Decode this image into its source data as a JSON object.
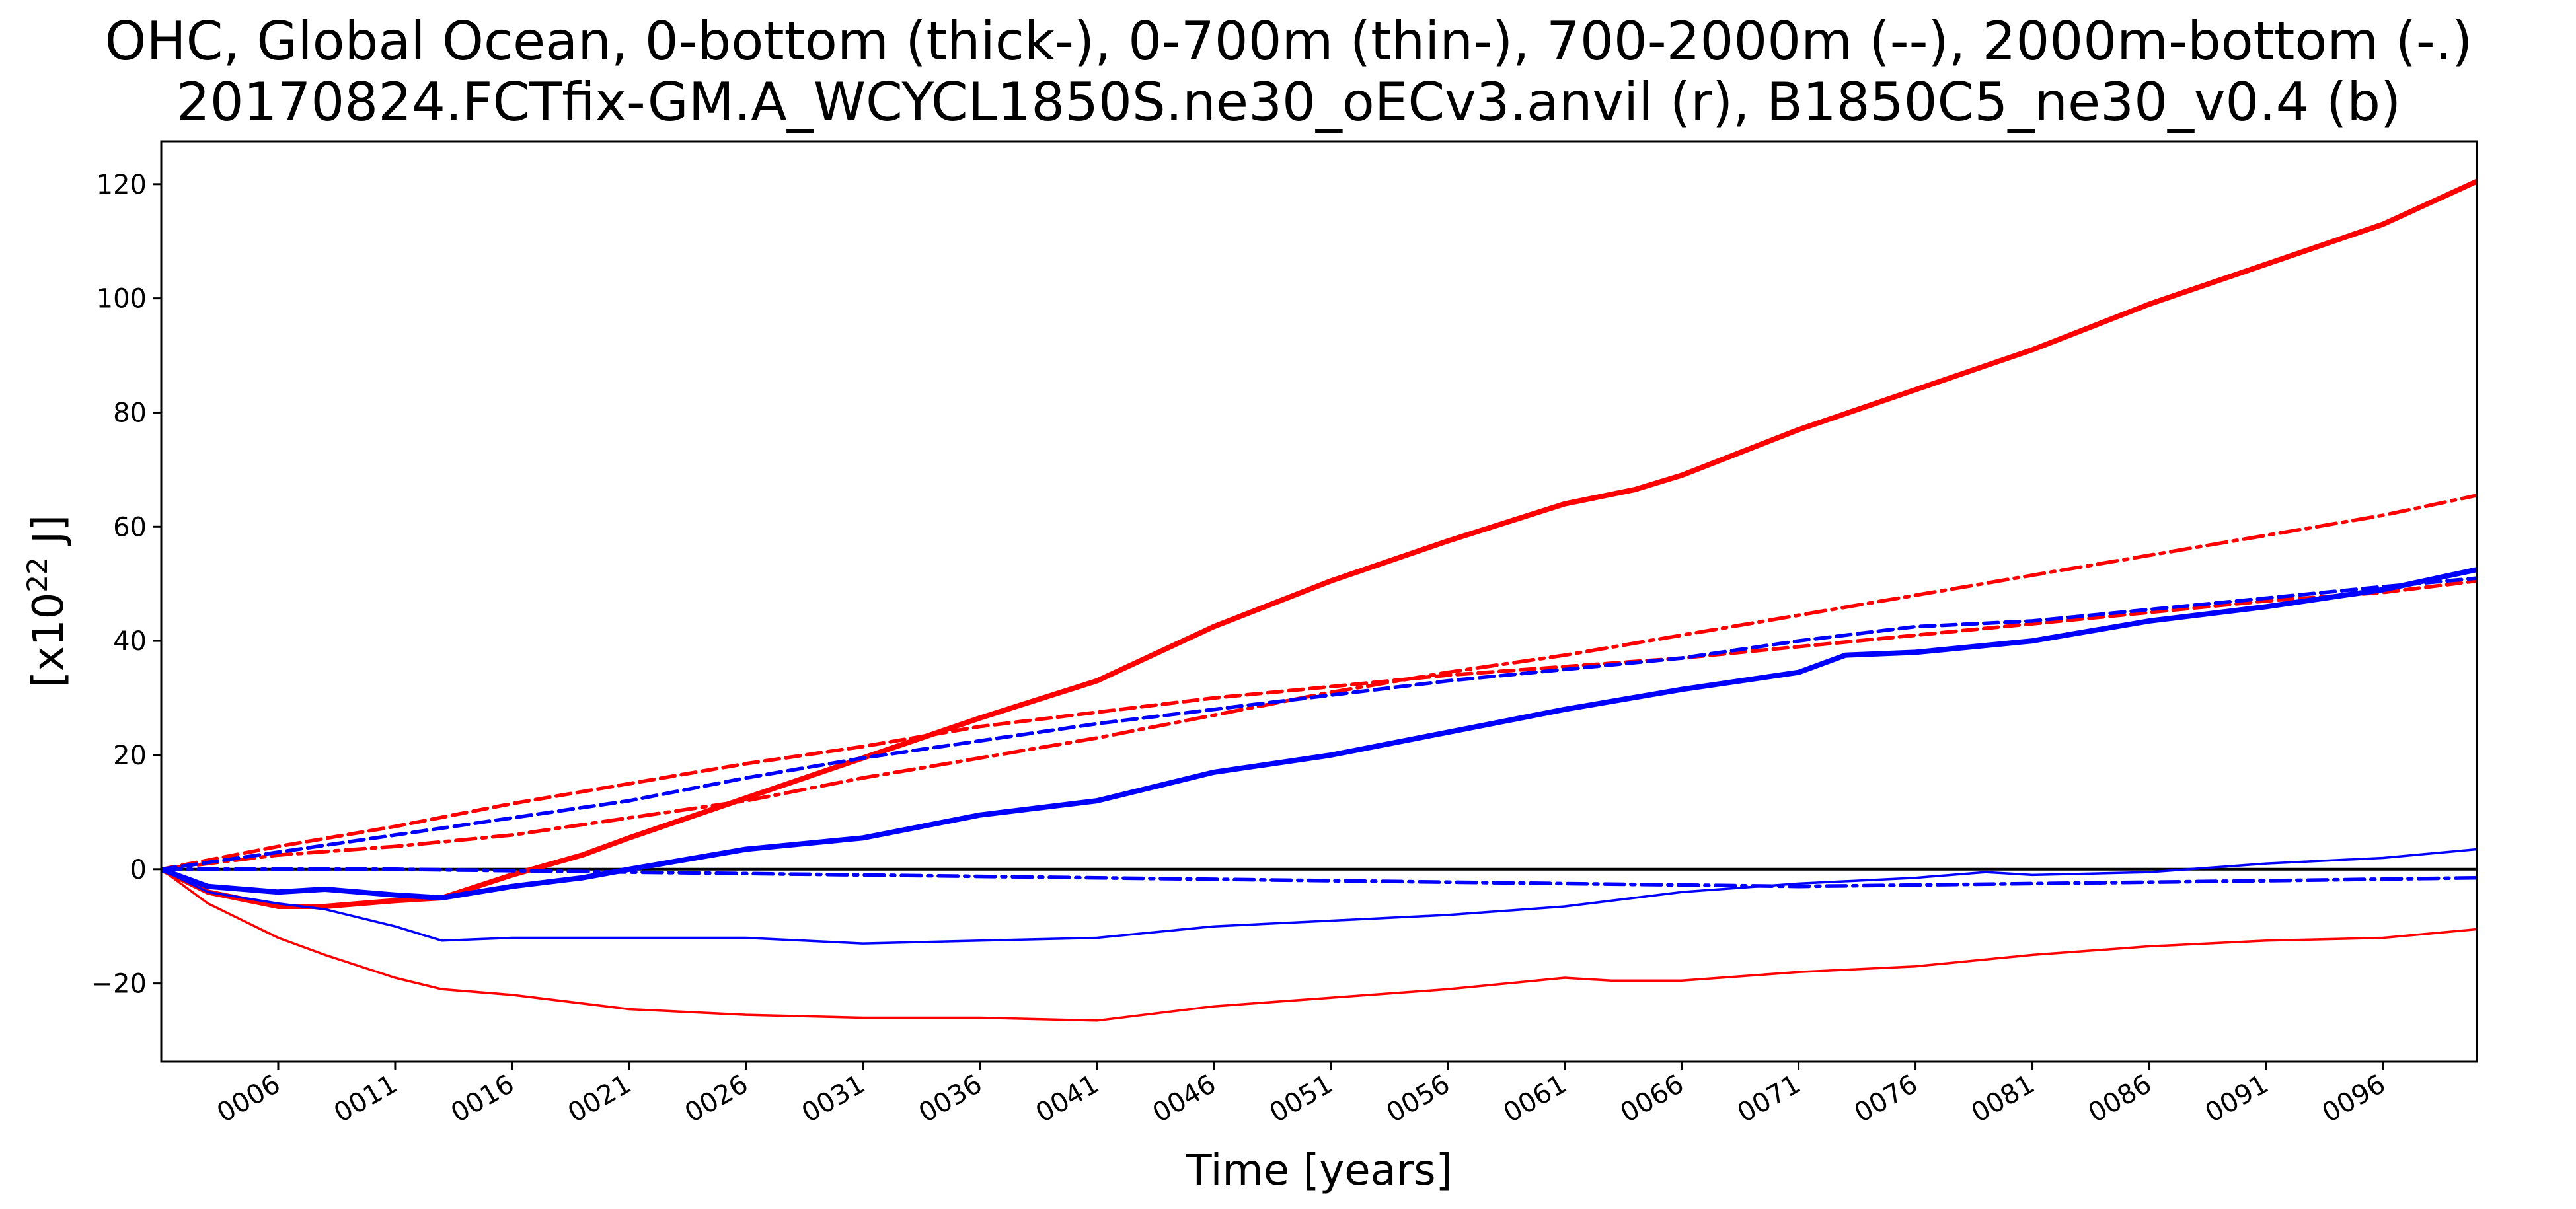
{
  "chart_data": {
    "type": "line",
    "title": "OHC, Global Ocean, 0-bottom (thick-), 0-700m (thin-), 700-2000m (--), 2000m-bottom (-.)",
    "subtitle": "20170824.FCTfix-GM.A_WCYCL1850S.ne30_oECv3.anvil (r), B1850C5_ne30_v0.4 (b)",
    "xlabel": "Time [years]",
    "ylabel_base": "[x10",
    "ylabel_exp": "22",
    "ylabel_unit": " J]",
    "xlim": [
      1,
      100
    ],
    "ylim": [
      -33.7,
      127.5
    ],
    "grid": false,
    "legend": "none",
    "x_tick_values": [
      6,
      11,
      16,
      21,
      26,
      31,
      36,
      41,
      46,
      51,
      56,
      61,
      66,
      71,
      76,
      81,
      86,
      91,
      96
    ],
    "x_tick_labels": [
      "0006",
      "0011",
      "0016",
      "0021",
      "0026",
      "0031",
      "0036",
      "0041",
      "0046",
      "0051",
      "0056",
      "0061",
      "0066",
      "0071",
      "0076",
      "0081",
      "0086",
      "0091",
      "0096"
    ],
    "y_ticks": [
      -20,
      0,
      20,
      40,
      60,
      80,
      100,
      120
    ],
    "y_tick_labels": [
      "−20",
      "0",
      "20",
      "40",
      "60",
      "80",
      "100",
      "120"
    ],
    "zero_line": 0,
    "colors": {
      "r": "#ff0000",
      "b": "#0000ff",
      "zero": "#000000"
    },
    "series": [
      {
        "color": "r",
        "style": "thick",
        "x": [
          1,
          3,
          6,
          8,
          11,
          13,
          16,
          19,
          21,
          26,
          31,
          36,
          41,
          46,
          51,
          56,
          61,
          64,
          66,
          71,
          76,
          81,
          86,
          91,
          96,
          100
        ],
        "values": [
          0,
          -4,
          -6.5,
          -6.5,
          -5.5,
          -5,
          -1,
          2.5,
          5.5,
          12.5,
          19.5,
          26.5,
          33,
          42.5,
          50.5,
          57.5,
          64,
          66.5,
          69,
          77,
          84,
          91,
          99,
          106,
          113,
          120.5
        ]
      },
      {
        "color": "r",
        "style": "thin",
        "x": [
          1,
          3,
          6,
          8,
          11,
          13,
          16,
          21,
          26,
          31,
          36,
          41,
          46,
          51,
          56,
          61,
          63,
          66,
          71,
          76,
          81,
          86,
          91,
          96,
          100
        ],
        "values": [
          0,
          -6,
          -12,
          -15,
          -19,
          -21,
          -22,
          -24.5,
          -25.5,
          -26,
          -26,
          -26.5,
          -24,
          -22.5,
          -21,
          -19,
          -19.5,
          -19.5,
          -18,
          -17,
          -15,
          -13.5,
          -12.5,
          -12,
          -10.5
        ]
      },
      {
        "color": "r",
        "style": "dashed",
        "x": [
          1,
          6,
          11,
          16,
          21,
          26,
          31,
          36,
          41,
          46,
          51,
          56,
          61,
          66,
          71,
          76,
          81,
          86,
          91,
          96,
          100
        ],
        "values": [
          0,
          4,
          7.5,
          11.5,
          15,
          18.5,
          21.5,
          25,
          27.5,
          30,
          32,
          34,
          35.5,
          37,
          39,
          41,
          43,
          45,
          47,
          48.5,
          50.5
        ]
      },
      {
        "color": "r",
        "style": "dashdot",
        "x": [
          1,
          6,
          11,
          16,
          21,
          26,
          31,
          36,
          41,
          46,
          51,
          56,
          61,
          66,
          71,
          76,
          81,
          86,
          91,
          96,
          100
        ],
        "values": [
          0,
          2.5,
          4,
          6,
          9,
          12,
          16,
          19.5,
          23,
          27,
          31,
          34.5,
          37.5,
          41,
          44.5,
          48,
          51.5,
          55,
          58.5,
          62,
          65.5
        ]
      },
      {
        "color": "b",
        "style": "thick",
        "x": [
          1,
          3,
          6,
          8,
          11,
          13,
          16,
          19,
          21,
          26,
          31,
          36,
          41,
          46,
          51,
          56,
          61,
          66,
          71,
          73,
          76,
          81,
          86,
          91,
          96,
          100
        ],
        "values": [
          0,
          -3,
          -4,
          -3.5,
          -4.5,
          -5,
          -3,
          -1.5,
          0,
          3.5,
          5.5,
          9.5,
          12,
          17,
          20,
          24,
          28,
          31.5,
          34.5,
          37.5,
          38,
          40,
          43.5,
          46,
          49,
          52.5
        ]
      },
      {
        "color": "b",
        "style": "thin",
        "x": [
          1,
          3,
          6,
          8,
          11,
          13,
          16,
          21,
          26,
          31,
          36,
          41,
          46,
          51,
          56,
          61,
          66,
          71,
          76,
          79,
          81,
          86,
          91,
          96,
          100
        ],
        "values": [
          0,
          -4,
          -6,
          -7,
          -10,
          -12.5,
          -12,
          -12,
          -12,
          -13,
          -12.5,
          -12,
          -10,
          -9,
          -8,
          -6.5,
          -4,
          -2.5,
          -1.5,
          -0.5,
          -1,
          -0.5,
          1,
          2,
          3.5
        ]
      },
      {
        "color": "b",
        "style": "dashed",
        "x": [
          1,
          6,
          11,
          16,
          21,
          26,
          31,
          36,
          41,
          46,
          51,
          56,
          61,
          66,
          71,
          76,
          81,
          86,
          91,
          96,
          100
        ],
        "values": [
          0,
          3,
          6,
          9,
          12,
          16,
          19.5,
          22.5,
          25.5,
          28,
          30.5,
          33,
          35,
          37,
          40,
          42.5,
          43.5,
          45.5,
          47.5,
          49.5,
          51
        ]
      },
      {
        "color": "b",
        "style": "dashdot",
        "x": [
          1,
          11,
          21,
          31,
          41,
          51,
          61,
          71,
          81,
          91,
          100
        ],
        "values": [
          0,
          0,
          -0.5,
          -1,
          -1.5,
          -2,
          -2.5,
          -3,
          -2.5,
          -2,
          -1.5
        ]
      }
    ]
  }
}
